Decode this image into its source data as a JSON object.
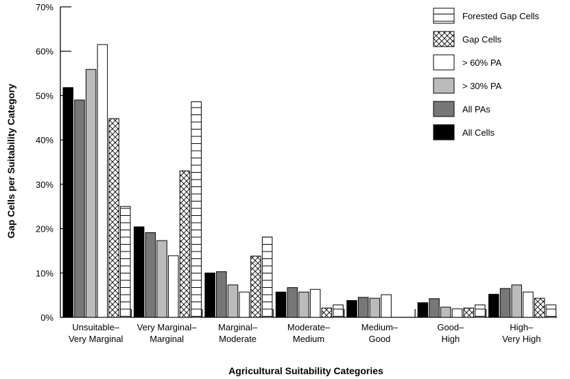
{
  "chart_data": {
    "type": "bar",
    "title": "",
    "xlabel": "Agricultural Suitability Categories",
    "ylabel": "Gap Cells per Suitability Category",
    "ylim": [
      0,
      70
    ],
    "yticks": [
      "0%",
      "10%",
      "20%",
      "30%",
      "40%",
      "50%",
      "60%",
      "70%"
    ],
    "categories": [
      [
        "Unsuitable–",
        "Very Marginal"
      ],
      [
        "Very Marginal–",
        "Marginal"
      ],
      [
        "Marginal–",
        "Moderate"
      ],
      [
        "Moderate–",
        "Medium"
      ],
      [
        "Medium–",
        "Good"
      ],
      [
        "Good–",
        "High"
      ],
      [
        "High–",
        "Very High"
      ]
    ],
    "legend_position": "top-right",
    "series": [
      {
        "name": "All Cells",
        "pattern": "solid",
        "color": "#000000",
        "values": [
          51.8,
          20.4,
          10.0,
          5.7,
          3.8,
          3.3,
          5.2
        ]
      },
      {
        "name": "All PAs",
        "pattern": "solid",
        "color": "#777777",
        "values": [
          49.0,
          19.1,
          10.3,
          6.7,
          4.5,
          4.2,
          6.5
        ]
      },
      {
        "name": "> 30% PA",
        "pattern": "solid",
        "color": "#bbbbbb",
        "values": [
          55.9,
          17.3,
          7.3,
          5.7,
          4.3,
          2.3,
          7.3
        ]
      },
      {
        "name": "> 60% PA",
        "pattern": "solid",
        "color": "#ffffff",
        "values": [
          61.5,
          13.9,
          5.7,
          6.3,
          5.1,
          1.9,
          5.7
        ]
      },
      {
        "name": "Gap Cells",
        "pattern": "crosshatch",
        "color": "#ffffff",
        "values": [
          44.8,
          33.0,
          13.8,
          2.1,
          0,
          2.1,
          4.3
        ]
      },
      {
        "name": "Forested Gap Cells",
        "pattern": "horizontal-lines",
        "color": "#ffffff",
        "values": [
          25.0,
          48.6,
          18.1,
          2.8,
          0,
          2.8,
          2.8
        ]
      }
    ],
    "legend_order": [
      "Forested Gap Cells",
      "Gap Cells",
      "> 60% PA",
      "> 30% PA",
      "All PAs",
      "All Cells"
    ]
  }
}
